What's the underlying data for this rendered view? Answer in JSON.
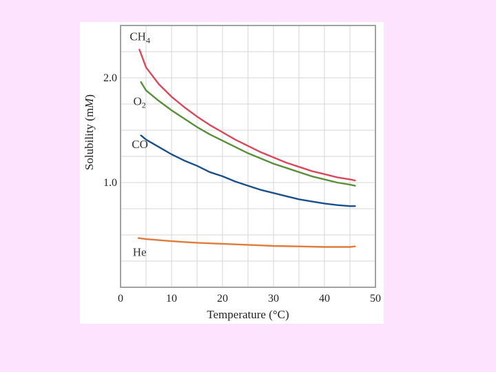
{
  "chart_data": {
    "type": "line",
    "xlabel": "Temperature (°C)",
    "ylabel_main": "Solubility (m",
    "ylabel_italic": "M",
    "ylabel_end": ")",
    "xlim": [
      0,
      50
    ],
    "ylim": [
      0,
      2.5
    ],
    "x_ticks": [
      0,
      10,
      20,
      30,
      40,
      50
    ],
    "x_tick_labels": [
      "0",
      "10",
      "20",
      "30",
      "40",
      "50"
    ],
    "y_tick_labels": [
      {
        "value": 1.0,
        "label": "1.0"
      },
      {
        "value": 2.0,
        "label": "2.0"
      }
    ],
    "grid": true,
    "series": [
      {
        "name": "CH4",
        "name_main": "CH",
        "name_sub": "4",
        "color": "#d9475a",
        "label_at": {
          "x": 1.8,
          "y": 2.36
        },
        "x": [
          3.7,
          5,
          7.5,
          10,
          12.5,
          15,
          17.5,
          20,
          22.5,
          25,
          27.5,
          30,
          32.5,
          35,
          37.5,
          40,
          42.5,
          45,
          46
        ],
        "y": [
          2.27,
          2.1,
          1.94,
          1.82,
          1.72,
          1.63,
          1.55,
          1.48,
          1.41,
          1.35,
          1.29,
          1.24,
          1.19,
          1.15,
          1.11,
          1.08,
          1.05,
          1.03,
          1.02
        ]
      },
      {
        "name": "O2",
        "name_main": "O",
        "name_sub": "2",
        "color": "#5a8f3a",
        "label_at": {
          "x": 2.5,
          "y": 1.74
        },
        "x": [
          4,
          5,
          7.5,
          10,
          12.5,
          15,
          17.5,
          20,
          22.5,
          25,
          27.5,
          30,
          32.5,
          35,
          37.5,
          40,
          42.5,
          45,
          46
        ],
        "y": [
          1.96,
          1.88,
          1.78,
          1.69,
          1.61,
          1.53,
          1.46,
          1.4,
          1.34,
          1.28,
          1.23,
          1.18,
          1.14,
          1.1,
          1.06,
          1.03,
          1.0,
          0.98,
          0.97
        ]
      },
      {
        "name": "CO",
        "name_main": "CO",
        "name_sub": "",
        "color": "#1b4f8a",
        "label_at": {
          "x": 2.2,
          "y": 1.33
        },
        "x": [
          4,
          5,
          7.5,
          10,
          12.5,
          15,
          17.5,
          20,
          22.5,
          25,
          27.5,
          30,
          32.5,
          35,
          37.5,
          40,
          42.5,
          45,
          46
        ],
        "y": [
          1.45,
          1.41,
          1.34,
          1.27,
          1.21,
          1.16,
          1.1,
          1.06,
          1.01,
          0.97,
          0.93,
          0.9,
          0.87,
          0.84,
          0.82,
          0.8,
          0.785,
          0.775,
          0.775
        ]
      },
      {
        "name": "He",
        "name_main": "He",
        "name_sub": "",
        "color": "#e07b3a",
        "label_at": {
          "x": 2.4,
          "y": 0.3
        },
        "x": [
          3.5,
          5,
          10,
          15,
          20,
          25,
          30,
          35,
          40,
          45,
          46
        ],
        "y": [
          0.47,
          0.46,
          0.44,
          0.425,
          0.415,
          0.405,
          0.395,
          0.39,
          0.385,
          0.385,
          0.39
        ]
      }
    ]
  }
}
